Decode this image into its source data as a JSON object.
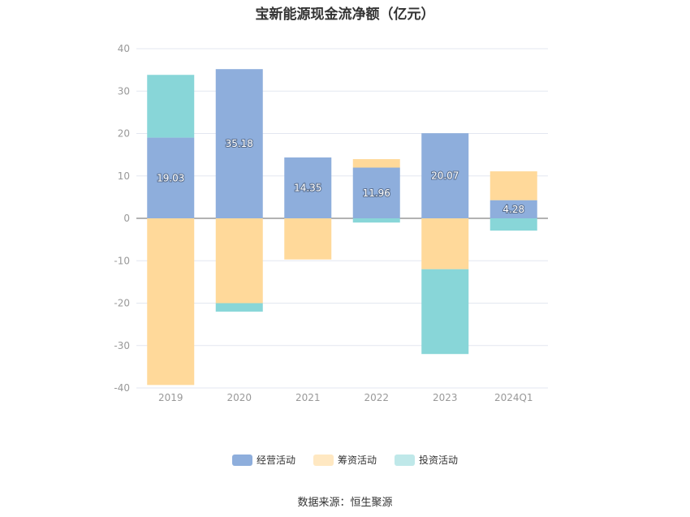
{
  "chart_data": {
    "type": "bar",
    "title": "宝新能源现金流净额（亿元）",
    "categories": [
      "2019",
      "2020",
      "2021",
      "2022",
      "2023",
      "2024Q1"
    ],
    "series": [
      {
        "name": "经营活动",
        "color": "#8eaedc",
        "values": [
          19.03,
          35.18,
          14.35,
          11.96,
          20.07,
          4.28
        ],
        "labels": [
          "19.03",
          "35.18",
          "14.35",
          "11.96",
          "20.07",
          "4.28"
        ]
      },
      {
        "name": "筹资活动",
        "color": "#ffd99a",
        "values": [
          -39.3,
          -20.0,
          -9.7,
          2.0,
          -12.0,
          6.8
        ]
      },
      {
        "name": "投资活动",
        "color": "#88d6d8",
        "values": [
          14.8,
          -2.0,
          0,
          -1.0,
          -20.0,
          -2.9
        ]
      }
    ],
    "yticks": [
      "40",
      "30",
      "20",
      "10",
      "0",
      "-10",
      "-20",
      "-30",
      "-40"
    ],
    "ylim": [
      -40,
      40
    ],
    "stacked": true,
    "grid": true,
    "legend_position": "bottom"
  },
  "source_note": "数据来源：恒生聚源"
}
